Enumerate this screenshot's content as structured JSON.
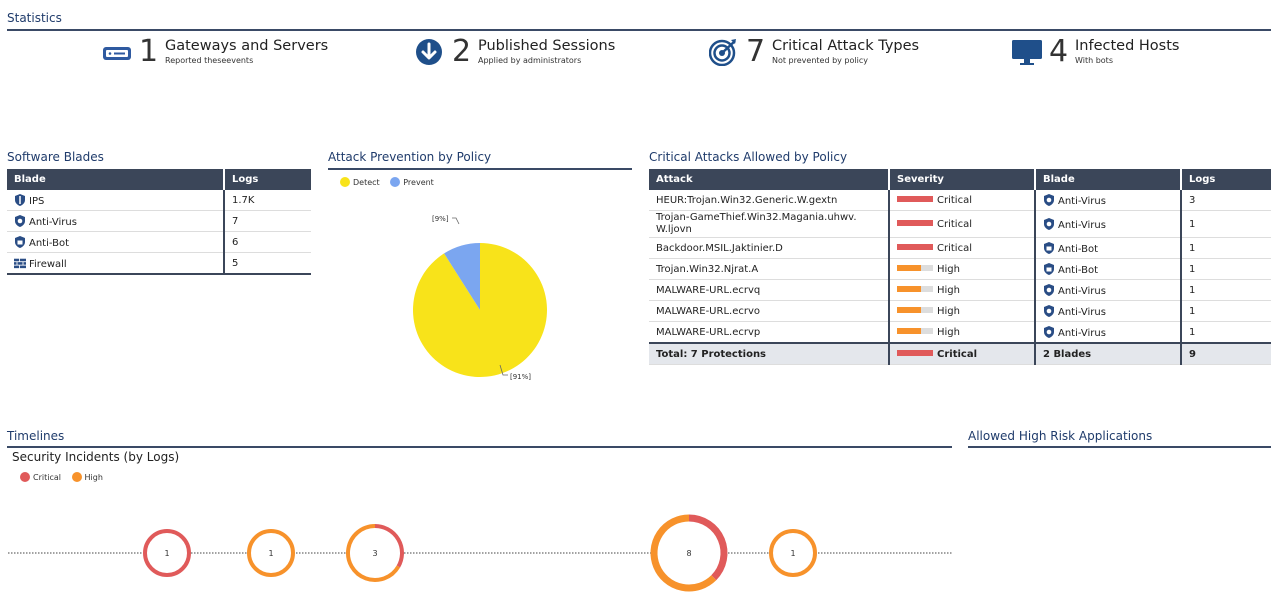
{
  "statistics": {
    "title": "Statistics",
    "cards": [
      {
        "num": "1",
        "label": "Gateways and Servers",
        "sub": "Reported theseevents",
        "icon": "gateway-icon"
      },
      {
        "num": "2",
        "label": "Published Sessions",
        "sub": "Applied by administrators",
        "icon": "download-arrow-icon"
      },
      {
        "num": "7",
        "label": "Critical Attack Types",
        "sub": "Not prevented by policy",
        "icon": "target-icon"
      },
      {
        "num": "4",
        "label": "Infected Hosts",
        "sub": "With bots",
        "icon": "monitor-icon"
      }
    ]
  },
  "software_blades": {
    "title": "Software Blades",
    "headers": [
      "Blade",
      "Logs"
    ],
    "rows": [
      {
        "blade": "IPS",
        "logs": "1.7K",
        "icon": "ips-shield-icon"
      },
      {
        "blade": "Anti-Virus",
        "logs": "7",
        "icon": "antivirus-shield-icon"
      },
      {
        "blade": "Anti-Bot",
        "logs": "6",
        "icon": "antibot-shield-icon"
      },
      {
        "blade": "Firewall",
        "logs": "5",
        "icon": "firewall-icon"
      }
    ]
  },
  "attack_prevention": {
    "title": "Attack Prevention by Policy",
    "legend": [
      "Detect",
      "Prevent"
    ],
    "colors": {
      "detect": "#f8e31a",
      "prevent": "#7ba6f0"
    },
    "labels": {
      "detect": "[91%]",
      "prevent": "[9%]"
    }
  },
  "chart_data": {
    "type": "pie",
    "categories": [
      "Detect",
      "Prevent"
    ],
    "values": [
      91,
      9
    ]
  },
  "critical_attacks": {
    "title": "Critical Attacks Allowed by Policy",
    "headers": [
      "Attack",
      "Severity",
      "Blade",
      "Logs"
    ],
    "rows": [
      {
        "attack": "HEUR:Trojan.Win32.Generic.W.gextn",
        "severity": "Critical",
        "blade": "Anti-Virus",
        "logs": "3"
      },
      {
        "attack": "Trojan-GameThief.Win32.Magania.uhwv.W.ljovn",
        "severity": "Critical",
        "blade": "Anti-Virus",
        "logs": "1"
      },
      {
        "attack": "Backdoor.MSIL.Jaktinier.D",
        "severity": "Critical",
        "blade": "Anti-Bot",
        "logs": "1"
      },
      {
        "attack": "Trojan.Win32.Njrat.A",
        "severity": "High",
        "blade": "Anti-Bot",
        "logs": "1"
      },
      {
        "attack": "MALWARE-URL.ecrvq",
        "severity": "High",
        "blade": "Anti-Virus",
        "logs": "1"
      },
      {
        "attack": "MALWARE-URL.ecrvo",
        "severity": "High",
        "blade": "Anti-Virus",
        "logs": "1"
      },
      {
        "attack": "MALWARE-URL.ecrvp",
        "severity": "High",
        "blade": "Anti-Virus",
        "logs": "1"
      }
    ],
    "total": {
      "attack": "Total: 7 Protections",
      "severity": "Critical",
      "blade": "2 Blades",
      "logs": "9"
    },
    "colors": {
      "critical": "#e05a5a",
      "high": "#f7922b"
    }
  },
  "timelines": {
    "title": "Timelines",
    "subtitle": "Security Incidents (by Logs)",
    "legend": [
      "Critical",
      "High"
    ],
    "bubbles": [
      {
        "count": "1",
        "critical": 1,
        "high": 0
      },
      {
        "count": "1",
        "critical": 0,
        "high": 1
      },
      {
        "count": "3",
        "critical": 1,
        "high": 2
      },
      {
        "count": "8",
        "critical": 3,
        "high": 5
      },
      {
        "count": "1",
        "critical": 0,
        "high": 1
      }
    ]
  },
  "allowed_apps": {
    "title": "Allowed High Risk Applications"
  }
}
